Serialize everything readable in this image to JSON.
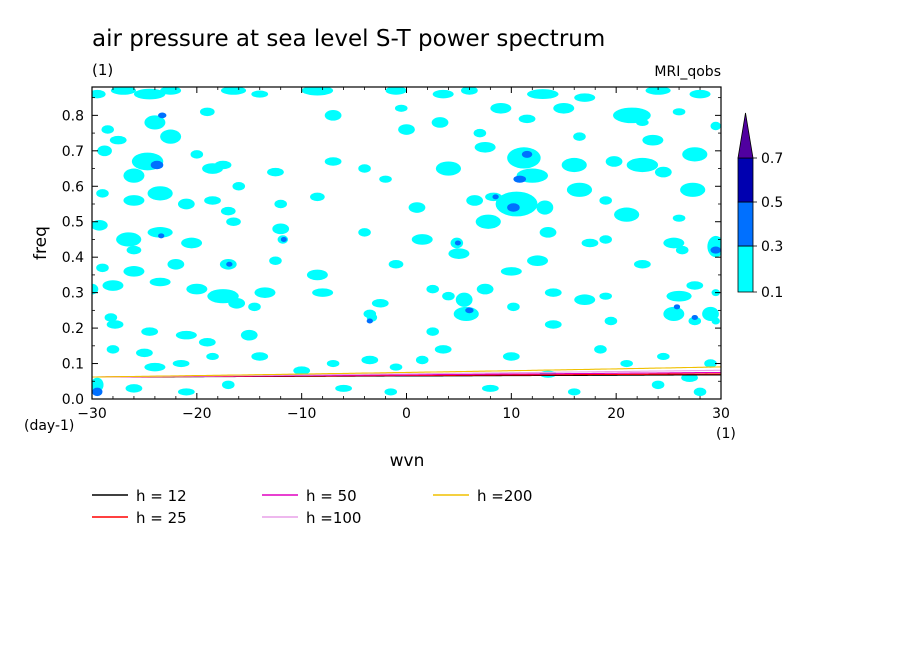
{
  "chart_data": {
    "type": "heatmap",
    "title": "air pressure at sea level S-T power spectrum",
    "subtitle": "(1)",
    "model": "MRI_qobs",
    "xlabel": "wvn",
    "ylabel": "freq",
    "x_unit": "(1)",
    "y_unit": "(day-1)",
    "xlim": [
      -30,
      30
    ],
    "ylim": [
      0,
      0.88
    ],
    "x_ticks": [
      -30,
      -20,
      -10,
      0,
      10,
      20,
      30
    ],
    "y_ticks": [
      0.0,
      0.1,
      0.2,
      0.3,
      0.4,
      0.5,
      0.6,
      0.7,
      0.8
    ],
    "colorbar": {
      "levels": [
        0.1,
        0.3,
        0.5,
        0.7
      ],
      "level_labels": [
        "0.1",
        "0.3",
        "0.5",
        "0.7"
      ],
      "colors": [
        "#00ffff",
        "#0070ff",
        "#0000b0",
        "#5000a0"
      ]
    },
    "dispersion_curves": [
      {
        "name": "h = 12",
        "h": 12,
        "color": "#000000"
      },
      {
        "name": "h = 25",
        "h": 25,
        "color": "#ff0000"
      },
      {
        "name": "h = 50",
        "h": 50,
        "color": "#e000c0"
      },
      {
        "name": "h =100",
        "h": 100,
        "color": "#e8a0e8"
      },
      {
        "name": "h =200",
        "h": 200,
        "color": "#f0c000"
      }
    ],
    "blobs": [
      [
        -29.5,
        0.86,
        0.8,
        0.012,
        1
      ],
      [
        -27,
        0.87,
        1.2,
        0.012,
        1
      ],
      [
        -24.5,
        0.86,
        1.5,
        0.015,
        1
      ],
      [
        -22.5,
        0.87,
        1,
        0.012,
        1
      ],
      [
        -16.5,
        0.87,
        1.2,
        0.012,
        1
      ],
      [
        -14,
        0.86,
        0.8,
        0.01,
        1
      ],
      [
        -8.5,
        0.87,
        1.5,
        0.014,
        1
      ],
      [
        -1,
        0.87,
        1,
        0.012,
        1
      ],
      [
        3.5,
        0.86,
        1,
        0.012,
        1
      ],
      [
        6,
        0.87,
        0.8,
        0.012,
        1
      ],
      [
        13,
        0.86,
        1.5,
        0.014,
        1
      ],
      [
        17,
        0.85,
        1,
        0.012,
        1
      ],
      [
        24,
        0.87,
        1.2,
        0.012,
        1
      ],
      [
        28,
        0.86,
        1,
        0.012,
        1
      ],
      [
        -28.5,
        0.76,
        0.6,
        0.012,
        1
      ],
      [
        -27.5,
        0.73,
        0.8,
        0.012,
        1
      ],
      [
        -24,
        0.78,
        1,
        0.02,
        1
      ],
      [
        -23.3,
        0.8,
        0.4,
        0.008,
        2
      ],
      [
        -22.5,
        0.74,
        1,
        0.02,
        1
      ],
      [
        -19,
        0.81,
        0.7,
        0.012,
        1
      ],
      [
        -7,
        0.8,
        0.8,
        0.015,
        1
      ],
      [
        -0.5,
        0.82,
        0.6,
        0.01,
        1
      ],
      [
        0,
        0.76,
        0.8,
        0.015,
        1
      ],
      [
        3.2,
        0.78,
        0.8,
        0.015,
        1
      ],
      [
        7,
        0.75,
        0.6,
        0.012,
        1
      ],
      [
        9,
        0.82,
        1,
        0.015,
        1
      ],
      [
        11.5,
        0.79,
        0.8,
        0.012,
        1
      ],
      [
        15,
        0.82,
        1,
        0.015,
        1
      ],
      [
        16.5,
        0.74,
        0.6,
        0.012,
        1
      ],
      [
        21.5,
        0.8,
        1.8,
        0.022,
        1
      ],
      [
        22.5,
        0.78,
        0.6,
        0.01,
        1
      ],
      [
        23.5,
        0.73,
        1,
        0.015,
        1
      ],
      [
        26,
        0.81,
        0.6,
        0.01,
        1
      ],
      [
        29.5,
        0.77,
        0.5,
        0.012,
        1
      ],
      [
        -28.8,
        0.7,
        0.7,
        0.015,
        1
      ],
      [
        -26,
        0.63,
        1,
        0.02,
        1
      ],
      [
        -24.7,
        0.67,
        1.5,
        0.025,
        1
      ],
      [
        -23.8,
        0.66,
        0.6,
        0.012,
        2
      ],
      [
        -20,
        0.69,
        0.6,
        0.012,
        1
      ],
      [
        -18.5,
        0.65,
        1,
        0.015,
        1
      ],
      [
        -17.5,
        0.66,
        0.8,
        0.012,
        1
      ],
      [
        -12.5,
        0.64,
        0.8,
        0.012,
        1
      ],
      [
        -7,
        0.67,
        0.8,
        0.012,
        1
      ],
      [
        -4,
        0.65,
        0.6,
        0.012,
        1
      ],
      [
        -2,
        0.62,
        0.6,
        0.01,
        1
      ],
      [
        -16,
        0.6,
        0.6,
        0.012,
        1
      ],
      [
        4,
        0.65,
        1.2,
        0.02,
        1
      ],
      [
        7.5,
        0.71,
        1,
        0.015,
        1
      ],
      [
        11.2,
        0.68,
        1.6,
        0.03,
        1
      ],
      [
        11.5,
        0.69,
        0.5,
        0.01,
        2
      ],
      [
        12,
        0.63,
        1.5,
        0.02,
        1
      ],
      [
        10.8,
        0.62,
        0.6,
        0.01,
        2
      ],
      [
        16,
        0.66,
        1.2,
        0.02,
        1
      ],
      [
        19.8,
        0.67,
        0.8,
        0.015,
        1
      ],
      [
        22.5,
        0.66,
        1.5,
        0.02,
        1
      ],
      [
        24.5,
        0.64,
        0.8,
        0.015,
        1
      ],
      [
        27.5,
        0.69,
        1.2,
        0.02,
        1
      ],
      [
        -29,
        0.58,
        0.6,
        0.012,
        1
      ],
      [
        -26,
        0.56,
        1,
        0.015,
        1
      ],
      [
        -23.5,
        0.58,
        1.2,
        0.02,
        1
      ],
      [
        -21,
        0.55,
        0.8,
        0.015,
        1
      ],
      [
        -18.5,
        0.56,
        0.8,
        0.012,
        1
      ],
      [
        -17,
        0.53,
        0.7,
        0.012,
        1
      ],
      [
        -12,
        0.55,
        0.6,
        0.012,
        1
      ],
      [
        -8.5,
        0.57,
        0.7,
        0.012,
        1
      ],
      [
        1,
        0.54,
        0.8,
        0.015,
        1
      ],
      [
        6.5,
        0.56,
        0.8,
        0.015,
        1
      ],
      [
        8.3,
        0.57,
        0.8,
        0.012,
        1
      ],
      [
        8.5,
        0.57,
        0.3,
        0.006,
        2
      ],
      [
        10.5,
        0.55,
        2,
        0.035,
        1
      ],
      [
        10.2,
        0.54,
        0.6,
        0.012,
        2
      ],
      [
        13.2,
        0.54,
        0.8,
        0.02,
        1
      ],
      [
        16.5,
        0.59,
        1.2,
        0.02,
        1
      ],
      [
        19,
        0.56,
        0.6,
        0.012,
        1
      ],
      [
        21,
        0.52,
        1.2,
        0.02,
        1
      ],
      [
        27.3,
        0.59,
        1.2,
        0.02,
        1
      ],
      [
        26,
        0.51,
        0.6,
        0.01,
        1
      ],
      [
        -29.3,
        0.49,
        0.8,
        0.015,
        1
      ],
      [
        -26.5,
        0.45,
        1.2,
        0.02,
        1
      ],
      [
        -26,
        0.42,
        0.7,
        0.012,
        1
      ],
      [
        -23.5,
        0.47,
        1.2,
        0.015,
        1
      ],
      [
        -23.4,
        0.46,
        0.3,
        0.006,
        2
      ],
      [
        -20.5,
        0.44,
        1,
        0.015,
        1
      ],
      [
        -16.5,
        0.5,
        0.7,
        0.012,
        1
      ],
      [
        -12,
        0.48,
        0.8,
        0.015,
        1
      ],
      [
        -11.8,
        0.45,
        0.5,
        0.012,
        1
      ],
      [
        -11.7,
        0.45,
        0.2,
        0.005,
        2
      ],
      [
        -4,
        0.47,
        0.6,
        0.012,
        1
      ],
      [
        1.5,
        0.45,
        1,
        0.015,
        1
      ],
      [
        4.8,
        0.44,
        0.6,
        0.015,
        1
      ],
      [
        4.9,
        0.44,
        0.2,
        0.005,
        2
      ],
      [
        7.8,
        0.5,
        1.2,
        0.02,
        1
      ],
      [
        13.5,
        0.47,
        0.8,
        0.015,
        1
      ],
      [
        17.5,
        0.44,
        0.8,
        0.012,
        1
      ],
      [
        19,
        0.45,
        0.6,
        0.012,
        1
      ],
      [
        25.5,
        0.44,
        1,
        0.015,
        1
      ],
      [
        26.3,
        0.42,
        0.6,
        0.012,
        1
      ],
      [
        29.5,
        0.43,
        0.8,
        0.03,
        1
      ],
      [
        29.5,
        0.42,
        0.5,
        0.01,
        2
      ],
      [
        -29,
        0.37,
        0.6,
        0.012,
        1
      ],
      [
        -26,
        0.36,
        1,
        0.015,
        1
      ],
      [
        -22,
        0.38,
        0.8,
        0.015,
        1
      ],
      [
        -17,
        0.38,
        0.8,
        0.015,
        1
      ],
      [
        -16.9,
        0.38,
        0.3,
        0.006,
        2
      ],
      [
        -12.5,
        0.39,
        0.6,
        0.012,
        1
      ],
      [
        -8.5,
        0.35,
        1,
        0.015,
        1
      ],
      [
        -1,
        0.38,
        0.7,
        0.012,
        1
      ],
      [
        5,
        0.41,
        1,
        0.015,
        1
      ],
      [
        10,
        0.36,
        1,
        0.012,
        1
      ],
      [
        12.5,
        0.39,
        1,
        0.015,
        1
      ],
      [
        22.5,
        0.38,
        0.8,
        0.012,
        1
      ],
      [
        -28,
        0.32,
        1,
        0.015,
        1
      ],
      [
        -23.5,
        0.33,
        1,
        0.012,
        1
      ],
      [
        -20,
        0.31,
        1,
        0.015,
        1
      ],
      [
        -17.5,
        0.29,
        1.5,
        0.02,
        1
      ],
      [
        -16.2,
        0.27,
        0.8,
        0.015,
        1
      ],
      [
        -13.5,
        0.3,
        1,
        0.015,
        1
      ],
      [
        -14.5,
        0.26,
        0.6,
        0.012,
        1
      ],
      [
        -8,
        0.3,
        1,
        0.012,
        1
      ],
      [
        -2.5,
        0.27,
        0.8,
        0.012,
        1
      ],
      [
        -3.5,
        0.24,
        0.6,
        0.012,
        1
      ],
      [
        2.5,
        0.31,
        0.6,
        0.012,
        1
      ],
      [
        4,
        0.29,
        0.6,
        0.012,
        1
      ],
      [
        5.5,
        0.28,
        0.8,
        0.02,
        1
      ],
      [
        7.5,
        0.31,
        0.8,
        0.015,
        1
      ],
      [
        10.2,
        0.26,
        0.6,
        0.012,
        1
      ],
      [
        14,
        0.3,
        0.8,
        0.012,
        1
      ],
      [
        17,
        0.28,
        1,
        0.015,
        1
      ],
      [
        19,
        0.29,
        0.6,
        0.01,
        1
      ],
      [
        26,
        0.29,
        1.2,
        0.015,
        1
      ],
      [
        27.5,
        0.32,
        0.8,
        0.012,
        1
      ],
      [
        29.5,
        0.3,
        0.4,
        0.01,
        1
      ],
      [
        -30,
        0.31,
        0.6,
        0.015,
        1
      ],
      [
        -28.2,
        0.23,
        0.6,
        0.012,
        1
      ],
      [
        -27.8,
        0.21,
        0.8,
        0.012,
        1
      ],
      [
        -24.5,
        0.19,
        0.8,
        0.012,
        1
      ],
      [
        -21,
        0.18,
        1,
        0.012,
        1
      ],
      [
        -19,
        0.16,
        0.8,
        0.012,
        1
      ],
      [
        -15,
        0.18,
        0.8,
        0.015,
        1
      ],
      [
        -3.3,
        0.23,
        0.5,
        0.012,
        1
      ],
      [
        -3.5,
        0.22,
        0.3,
        0.006,
        2
      ],
      [
        2.5,
        0.19,
        0.6,
        0.012,
        1
      ],
      [
        5.7,
        0.24,
        1.2,
        0.02,
        1
      ],
      [
        6,
        0.25,
        0.4,
        0.008,
        2
      ],
      [
        14,
        0.21,
        0.8,
        0.012,
        1
      ],
      [
        19.5,
        0.22,
        0.6,
        0.012,
        1
      ],
      [
        25.5,
        0.24,
        1,
        0.02,
        1
      ],
      [
        25.8,
        0.26,
        0.3,
        0.006,
        2
      ],
      [
        27.5,
        0.22,
        0.6,
        0.012,
        1
      ],
      [
        27.5,
        0.23,
        0.3,
        0.006,
        2
      ],
      [
        29,
        0.24,
        0.8,
        0.02,
        1
      ],
      [
        29.5,
        0.22,
        0.4,
        0.01,
        1
      ],
      [
        -28,
        0.14,
        0.6,
        0.012,
        1
      ],
      [
        -25,
        0.13,
        0.8,
        0.012,
        1
      ],
      [
        -24,
        0.09,
        1,
        0.012,
        1
      ],
      [
        -21.5,
        0.1,
        0.8,
        0.01,
        1
      ],
      [
        -18.5,
        0.12,
        0.6,
        0.01,
        1
      ],
      [
        -14,
        0.12,
        0.8,
        0.012,
        1
      ],
      [
        -10,
        0.08,
        0.8,
        0.012,
        1
      ],
      [
        -7,
        0.1,
        0.6,
        0.01,
        1
      ],
      [
        -3.5,
        0.11,
        0.8,
        0.012,
        1
      ],
      [
        -1,
        0.09,
        0.6,
        0.01,
        1
      ],
      [
        1.5,
        0.11,
        0.6,
        0.012,
        1
      ],
      [
        3.5,
        0.14,
        0.8,
        0.012,
        1
      ],
      [
        10,
        0.12,
        0.8,
        0.012,
        1
      ],
      [
        13.5,
        0.07,
        0.8,
        0.01,
        1
      ],
      [
        18.5,
        0.14,
        0.6,
        0.012,
        1
      ],
      [
        21,
        0.1,
        0.6,
        0.01,
        1
      ],
      [
        24.5,
        0.12,
        0.6,
        0.01,
        1
      ],
      [
        27,
        0.06,
        0.8,
        0.012,
        1
      ],
      [
        29,
        0.1,
        0.6,
        0.012,
        1
      ],
      [
        -29.5,
        0.04,
        0.6,
        0.02,
        1
      ],
      [
        -29.5,
        0.02,
        0.5,
        0.012,
        2
      ],
      [
        -26,
        0.03,
        0.8,
        0.012,
        1
      ],
      [
        -21,
        0.02,
        0.8,
        0.01,
        1
      ],
      [
        -17,
        0.04,
        0.6,
        0.012,
        1
      ],
      [
        -6,
        0.03,
        0.8,
        0.01,
        1
      ],
      [
        -1.5,
        0.02,
        0.6,
        0.01,
        1
      ],
      [
        8,
        0.03,
        0.8,
        0.01,
        1
      ],
      [
        16,
        0.02,
        0.6,
        0.01,
        1
      ],
      [
        24,
        0.04,
        0.6,
        0.012,
        1
      ],
      [
        28,
        0.02,
        0.6,
        0.012,
        1
      ]
    ]
  },
  "legend": {
    "items": [
      {
        "label": "h = 12",
        "color": "#000000"
      },
      {
        "label": "h = 25",
        "color": "#ff0000"
      },
      {
        "label": "h = 50",
        "color": "#e000c0"
      },
      {
        "label": "h =100",
        "color": "#e8a0e8"
      },
      {
        "label": "h =200",
        "color": "#f0c000"
      }
    ]
  }
}
